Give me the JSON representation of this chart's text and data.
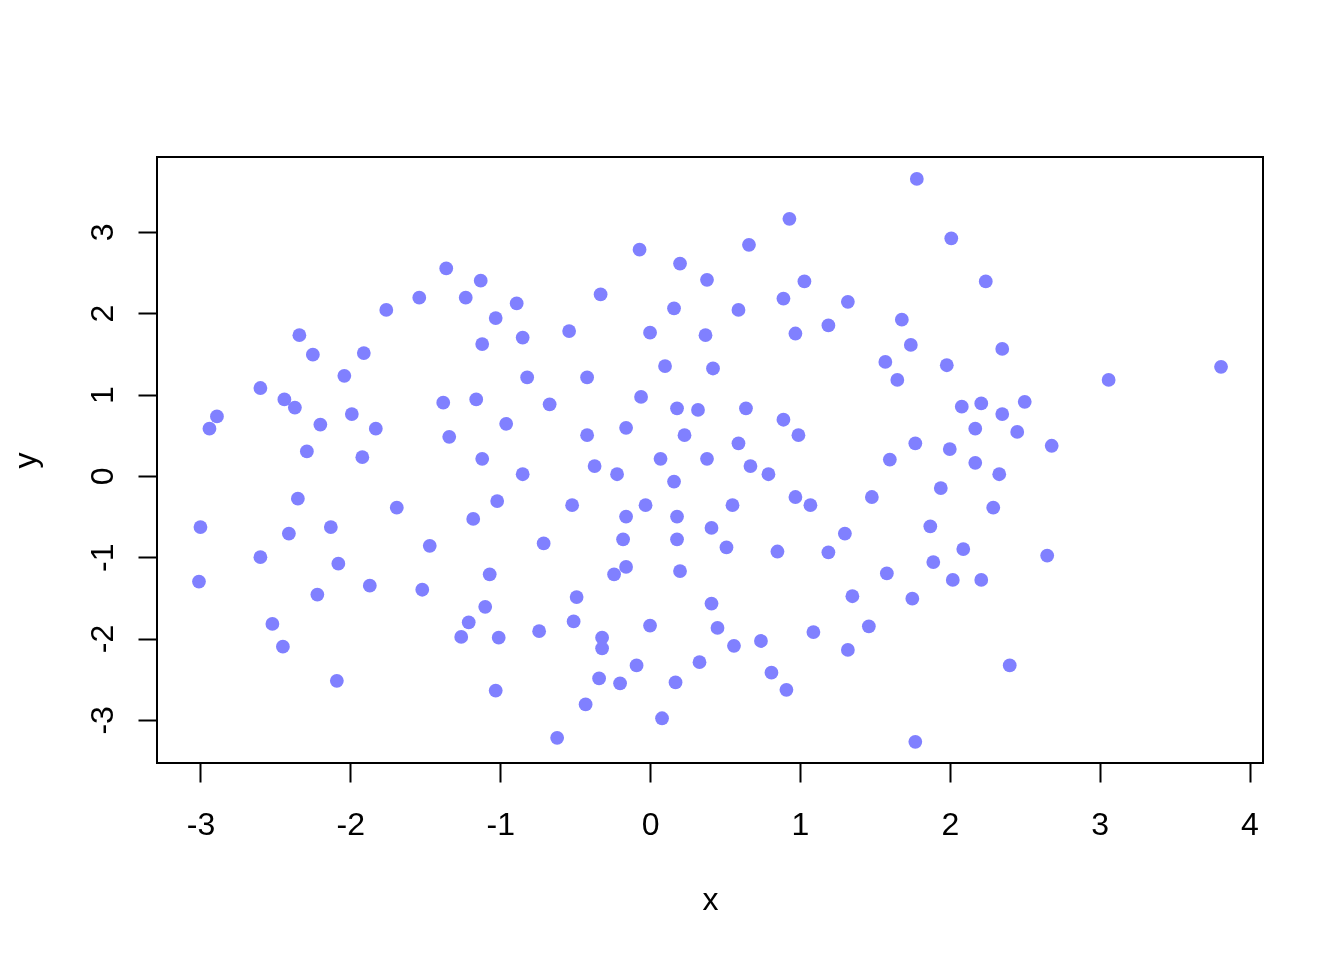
{
  "chart_data": {
    "type": "scatter",
    "xlabel": "x",
    "ylabel": "y",
    "x": [
      -1.36,
      -1.54,
      -1.76,
      -2.34,
      -2.25,
      -2.04,
      -1.91,
      -2.6,
      -2.89,
      -2.94,
      -2.44,
      -2.37,
      -2.2,
      -2.29,
      -1.99,
      -1.83,
      -1.92,
      -2.35,
      -3.0,
      -3.01,
      -2.41,
      -2.6,
      -2.52,
      -2.45,
      -2.09,
      -2.22,
      -2.13,
      -2.08,
      -1.87,
      -1.52,
      -1.26,
      -1.69,
      -1.38,
      -1.34,
      -1.47,
      -0.07,
      0.2,
      0.66,
      0.38,
      -1.13,
      -1.23,
      -0.33,
      -0.89,
      -1.03,
      0.16,
      0.59,
      -0.54,
      0.0,
      0.37,
      -0.85,
      -1.12,
      0.1,
      0.42,
      -1.16,
      -1.18,
      -1.07,
      -1.1,
      -1.21,
      -1.01,
      -1.03,
      -0.62,
      -0.43,
      0.08,
      0.17,
      -0.2,
      -0.34,
      -0.09,
      0.33,
      -0.32,
      -0.32,
      -0.74,
      -0.51,
      0.0,
      0.45,
      0.56,
      0.41,
      -0.49,
      0.74,
      -0.82,
      -0.42,
      -0.06,
      0.32,
      0.64,
      0.23,
      -0.42,
      -0.22,
      0.16,
      0.67,
      0.55,
      -0.03,
      -0.52,
      -0.18,
      0.18,
      0.51,
      -0.71,
      -1.02,
      -1.12,
      -0.96,
      -0.16,
      0.2,
      0.18,
      -0.16,
      0.07,
      0.38,
      -0.37,
      -0.16,
      0.18,
      0.41,
      -0.85,
      -0.67,
      0.59,
      -0.24,
      0.79,
      1.07,
      0.89,
      1.78,
      0.93,
      2.01,
      2.24,
      1.03,
      0.89,
      1.32,
      1.19,
      0.97,
      1.68,
      2.35,
      1.74,
      1.98,
      1.57,
      1.65,
      2.5,
      2.21,
      2.35,
      2.45,
      2.68,
      2.08,
      2.17,
      2.0,
      2.17,
      2.33,
      2.29,
      2.65,
      2.4,
      2.21,
      2.02,
      2.09,
      1.89,
      1.75,
      1.77,
      1.46,
      1.32,
      1.35,
      0.91,
      0.81,
      1.09,
      1.87,
      1.94,
      1.77,
      1.48,
      1.6,
      1.3,
      1.58,
      1.19,
      0.99,
      0.97,
      0.85,
      3.06,
      3.81
    ],
    "values": [
      2.55,
      2.19,
      2.04,
      1.73,
      1.49,
      1.23,
      1.51,
      1.08,
      0.73,
      0.58,
      0.94,
      0.84,
      0.63,
      0.3,
      0.76,
      0.58,
      0.23,
      -0.28,
      -0.63,
      -1.3,
      -0.71,
      -1.0,
      -1.82,
      -2.1,
      -2.52,
      -1.46,
      -0.63,
      -1.08,
      -1.35,
      -1.4,
      -1.98,
      -0.39,
      0.9,
      0.48,
      -0.86,
      2.78,
      2.61,
      2.84,
      2.41,
      2.4,
      2.19,
      2.23,
      2.12,
      1.94,
      2.06,
      2.04,
      1.78,
      1.76,
      1.73,
      1.7,
      1.62,
      1.35,
      1.32,
      0.94,
      -0.53,
      -1.21,
      -1.61,
      -1.8,
      -1.99,
      -2.64,
      -3.22,
      -2.81,
      -2.98,
      -2.54,
      -2.55,
      -2.49,
      -2.33,
      -2.29,
      -1.99,
      -2.12,
      -1.91,
      -1.79,
      -1.84,
      -1.87,
      -2.09,
      -1.57,
      -1.49,
      -2.03,
      1.21,
      1.21,
      0.97,
      0.81,
      0.83,
      0.5,
      0.5,
      0.02,
      -0.07,
      0.12,
      -0.36,
      -0.36,
      -0.36,
      -0.78,
      -0.78,
      -0.88,
      -0.83,
      -0.31,
      0.21,
      0.64,
      -1.12,
      -1.17,
      0.83,
      0.59,
      0.21,
      0.21,
      0.12,
      -0.5,
      -0.5,
      -0.64,
      0.02,
      0.88,
      0.4,
      -1.21,
      0.02,
      -0.36,
      0.69,
      3.65,
      3.16,
      2.92,
      2.39,
      2.39,
      2.18,
      2.14,
      1.85,
      1.75,
      1.92,
      1.56,
      1.61,
      1.36,
      1.4,
      1.18,
      0.91,
      0.89,
      0.76,
      0.54,
      0.37,
      0.85,
      0.58,
      0.33,
      0.16,
      0.02,
      -0.39,
      -0.98,
      -2.33,
      -1.28,
      -1.28,
      -0.9,
      -1.06,
      -1.51,
      -3.27,
      -1.85,
      -2.14,
      -1.48,
      -2.63,
      -2.42,
      -1.92,
      -0.62,
      -0.15,
      0.4,
      -0.26,
      0.2,
      -0.71,
      -1.2,
      -0.94,
      0.5,
      -0.26,
      -0.93,
      1.18,
      1.34
    ],
    "color": "#8080ff",
    "marker": "circle",
    "xlim": [
      -3.29,
      4.09
    ],
    "ylim": [
      -3.53,
      3.92
    ],
    "xticks": [
      -3,
      -2,
      -1,
      0,
      1,
      2,
      3,
      4
    ],
    "yticks": [
      -3,
      -2,
      -1,
      0,
      1,
      2,
      3
    ]
  }
}
